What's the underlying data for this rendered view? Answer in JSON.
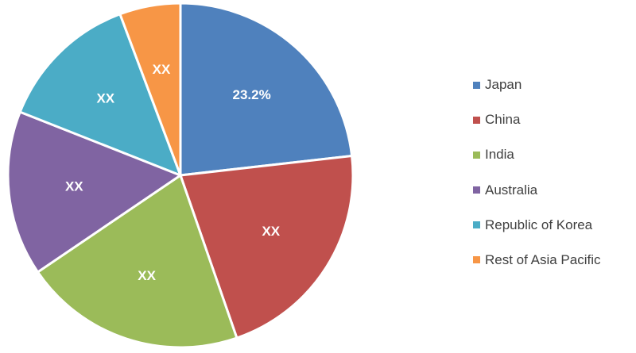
{
  "chart_data": {
    "type": "pie",
    "legend_position": "right",
    "slices": [
      {
        "name": "Japan",
        "value": 23.2,
        "label": "23.2%",
        "color": "#4F81BD"
      },
      {
        "name": "China",
        "value": 21.5,
        "label": "XX",
        "color": "#C0504D"
      },
      {
        "name": "India",
        "value": 20.8,
        "label": "XX",
        "color": "#9BBB59"
      },
      {
        "name": "Australia",
        "value": 15.5,
        "label": "XX",
        "color": "#8064A2"
      },
      {
        "name": "Republic of Korea",
        "value": 13.3,
        "label": "XX",
        "color": "#4BACC6"
      },
      {
        "name": "Rest of Asia Pacific",
        "value": 5.7,
        "label": "XX",
        "color": "#F79646"
      }
    ]
  }
}
